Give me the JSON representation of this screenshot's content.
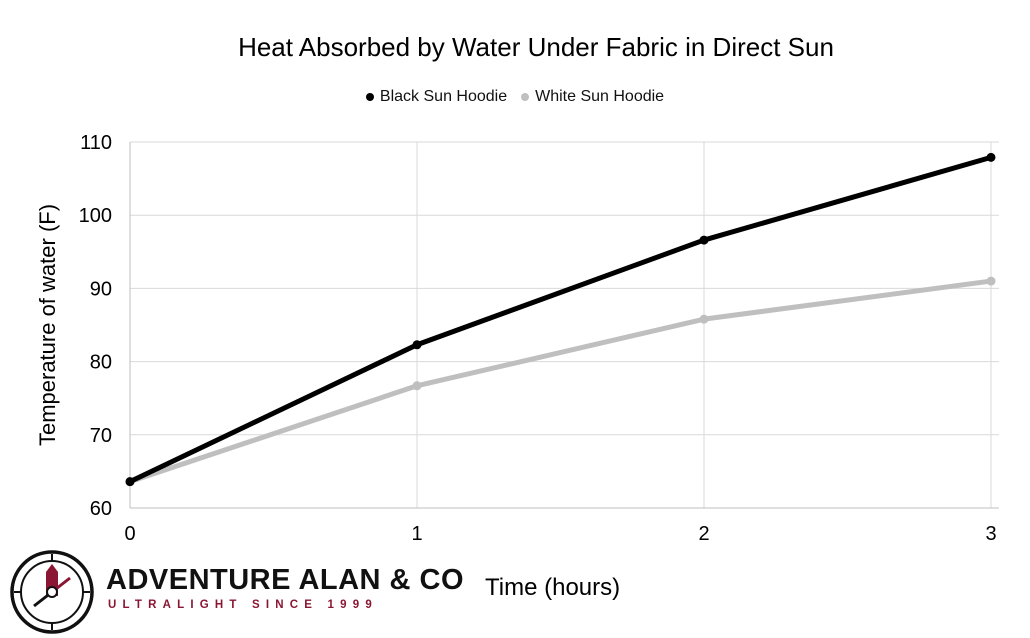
{
  "chart_data": {
    "type": "line",
    "title": "Heat Absorbed by Water Under Fabric in Direct Sun",
    "xlabel": "Time (hours)",
    "ylabel": "Temperature of water (F)",
    "x": [
      0,
      1,
      2,
      3
    ],
    "xticks": [
      "0",
      "1",
      "2",
      "3"
    ],
    "yticks": [
      "60",
      "70",
      "80",
      "90",
      "100",
      "110"
    ],
    "xlim": [
      0,
      3
    ],
    "ylim": [
      60,
      110
    ],
    "grid": true,
    "legend_position": "top",
    "series": [
      {
        "name": "Black Sun Hoodie",
        "color": "#000000",
        "values": [
          63.6,
          82.3,
          96.6,
          107.9
        ]
      },
      {
        "name": "White Sun Hoodie",
        "color": "#bfbfbf",
        "values": [
          63.6,
          76.7,
          85.8,
          91.0
        ]
      }
    ]
  },
  "brand": {
    "name": "ADVENTURE ALAN & CO",
    "tagline": "ULTRALIGHT SINCE 1999",
    "accent_color": "#8a1633",
    "logo_icon": "compass-icon"
  }
}
